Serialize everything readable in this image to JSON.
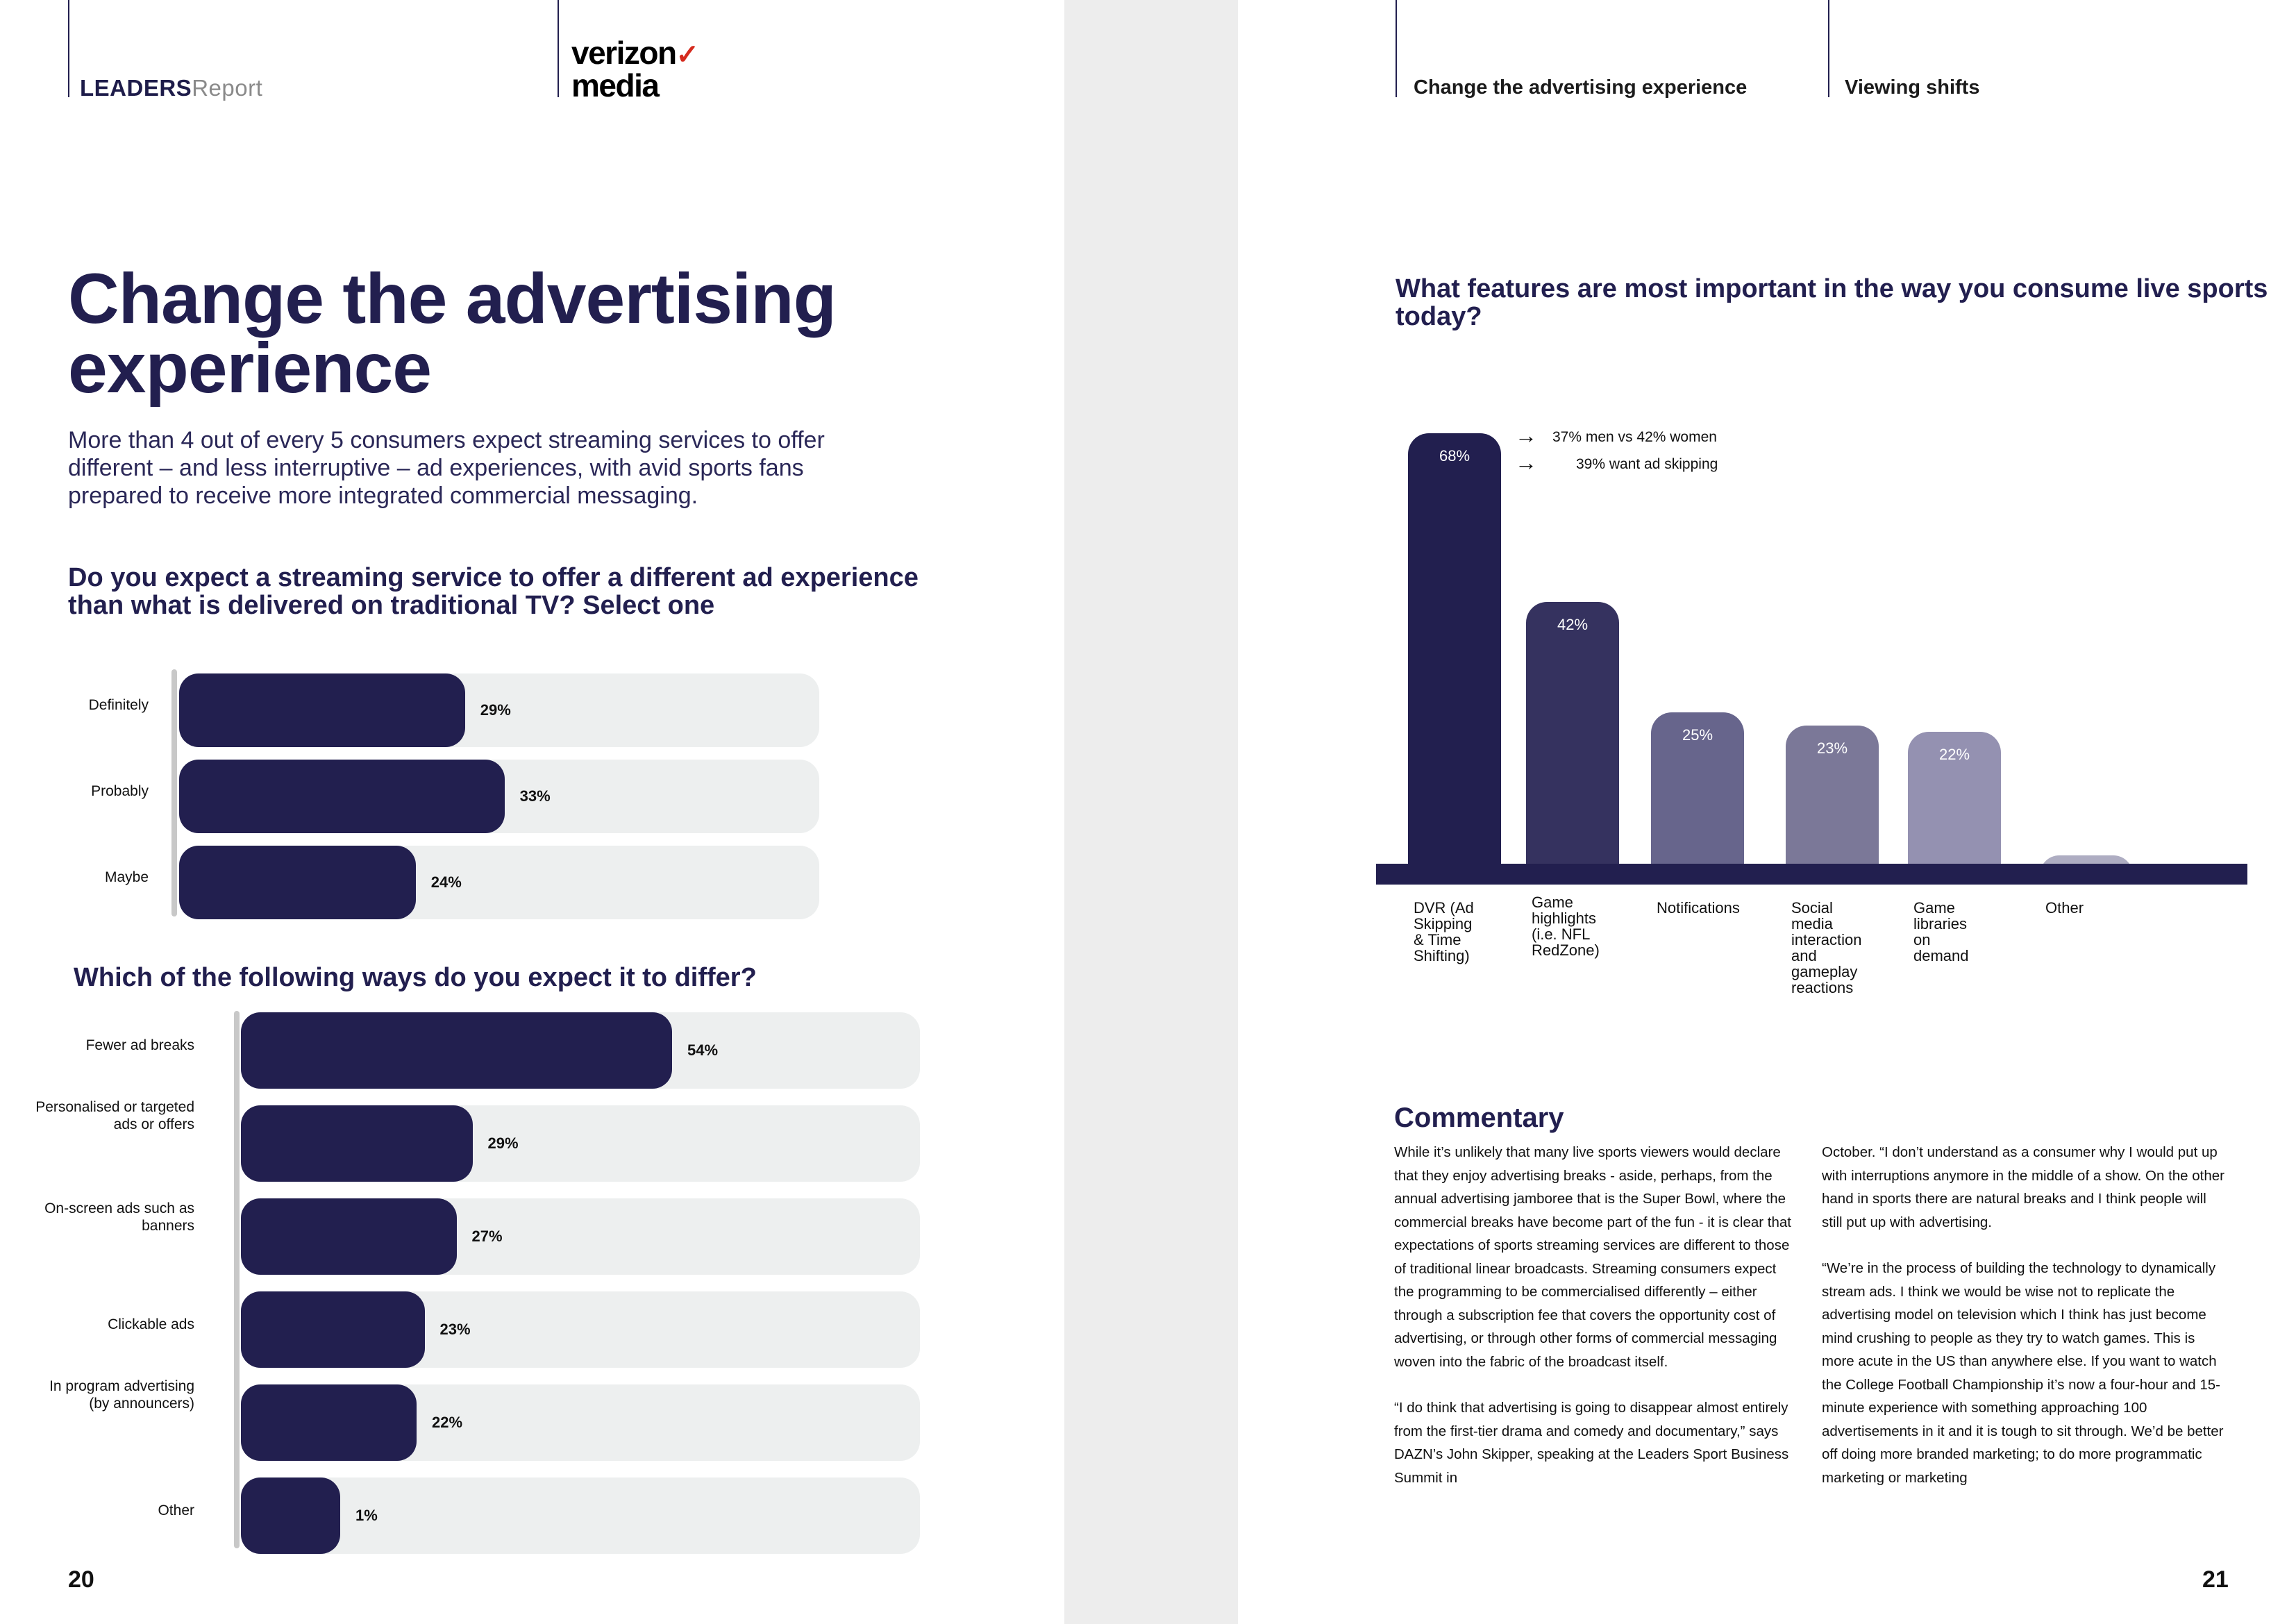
{
  "header": {
    "brand_bold": "LEADERS",
    "brand_light": "Report",
    "logo_line1": "verizon",
    "logo_check": "✓",
    "logo_line2": "media",
    "tab_1": "Change the advertising experience",
    "tab_2": "Viewing shifts"
  },
  "left": {
    "title": "Change the advertising experience",
    "intro": "More than 4 out of every 5 consumers expect streaming services to offer different – and less interruptive – ad experiences, with avid sports fans prepared to receive more integrated commercial messaging.",
    "q1": "Do you expect a streaming service to offer a different ad experience than what is delivered on traditional TV? Select one",
    "q1_items": [
      {
        "label": "Definitely",
        "value": 29,
        "pct": "29%"
      },
      {
        "label": "Probably",
        "value": 33,
        "pct": "33%"
      },
      {
        "label": "Maybe",
        "value": 24,
        "pct": "24%"
      }
    ],
    "q2": "Which of the following ways do you expect it to differ?",
    "q2_items": [
      {
        "label": "Fewer ad breaks",
        "value": 54,
        "pct": "54%"
      },
      {
        "label": "Personalised or targeted ads or offers",
        "value": 29,
        "pct": "29%"
      },
      {
        "label": "On-screen ads such as banners",
        "value": 27,
        "pct": "27%"
      },
      {
        "label": "Clickable ads",
        "value": 23,
        "pct": "23%"
      },
      {
        "label": "In program advertising (by announcers)",
        "value": 22,
        "pct": "22%"
      },
      {
        "label": "Other",
        "value": 1,
        "pct": "1%"
      }
    ],
    "page_number": "20"
  },
  "right": {
    "q3": "What features are most important in the way you consume live sports today?",
    "annotations": [
      "37% men vs 42% women",
      "39% want ad skipping"
    ],
    "arrow_glyph": "→",
    "commentary_title": "Commentary",
    "col1": [
      "While it’s unlikely that many live sports viewers would declare that they enjoy advertising breaks - aside, perhaps, from the annual advertising jamboree that is the Super Bowl, where the commercial breaks have become part of the fun - it is clear that expectations of sports streaming services are different to those of traditional linear broadcasts. Streaming consumers expect the programming to be commercialised differently – either through a subscription fee that covers the opportunity cost of advertising, or through other forms of commercial messaging woven into the fabric of the broadcast itself.",
      "“I do think that advertising is going to disappear almost entirely from the first-tier drama and comedy and documentary,” says DAZN’s John Skipper, speaking at the Leaders Sport Business Summit in"
    ],
    "col2": [
      "October. “I don’t understand as a consumer why I would put up with interruptions anymore in the middle of a show. On the other hand in sports there are natural breaks and I think people will still put up with advertising.",
      "“We’re in the process of building the technology to dynamically stream ads. I think we would be wise not to replicate the advertising model on television which I think has just become mind crushing to people as they try to watch games. This is more acute in the US than anywhere else. If you want to watch the College Football Championship it’s now a four-hour and 15-minute experience with something approaching 100 advertisements in it and it is tough to sit through. We’d be better off doing more branded marketing; to do more programmatic marketing or marketing"
    ],
    "page_number": "21"
  },
  "chart_data": [
    {
      "type": "bar",
      "orientation": "horizontal",
      "title": "Do you expect a streaming service to offer a different ad experience than what is delivered on traditional TV? Select one",
      "categories": [
        "Definitely",
        "Probably",
        "Maybe"
      ],
      "values": [
        29,
        33,
        24
      ],
      "unit": "%",
      "xlim": [
        0,
        100
      ]
    },
    {
      "type": "bar",
      "orientation": "horizontal",
      "title": "Which of the following ways do you expect it to differ?",
      "categories": [
        "Fewer ad breaks",
        "Personalised or targeted ads or offers",
        "On-screen ads such as banners",
        "Clickable ads",
        "In program advertising (by announcers)",
        "Other"
      ],
      "values": [
        54,
        29,
        27,
        23,
        22,
        1
      ],
      "unit": "%",
      "xlim": [
        0,
        100
      ]
    },
    {
      "type": "bar",
      "orientation": "vertical",
      "title": "What features are most important in the way you consume live sports today?",
      "categories": [
        "DVR (Ad Skipping & Time Shifting)",
        "Game highlights (i.e. NFL RedZone)",
        "Notifications",
        "Social media interaction and gameplay reactions",
        "Game libraries on demand",
        "Other"
      ],
      "labels_display": [
        [
          "DVR (Ad",
          "Skipping",
          "& Time",
          "Shifting)"
        ],
        [
          "Game",
          "highlights",
          "(i.e. NFL",
          "RedZone)"
        ],
        [
          "Notifications"
        ],
        [
          "Social",
          "media",
          "interaction",
          "and",
          "gameplay",
          "reactions"
        ],
        [
          "Game",
          "libraries",
          "on",
          "demand"
        ],
        [
          "Other"
        ]
      ],
      "values": [
        68,
        42,
        25,
        23,
        22,
        3
      ],
      "value_labels": [
        "68%",
        "42%",
        "25%",
        "23%",
        "22%",
        "3%"
      ],
      "unit": "%",
      "colors": [
        "#221f4f",
        "#35325f",
        "#67658c",
        "#7b7898",
        "#9491b1",
        "#aeadc2"
      ]
    }
  ]
}
